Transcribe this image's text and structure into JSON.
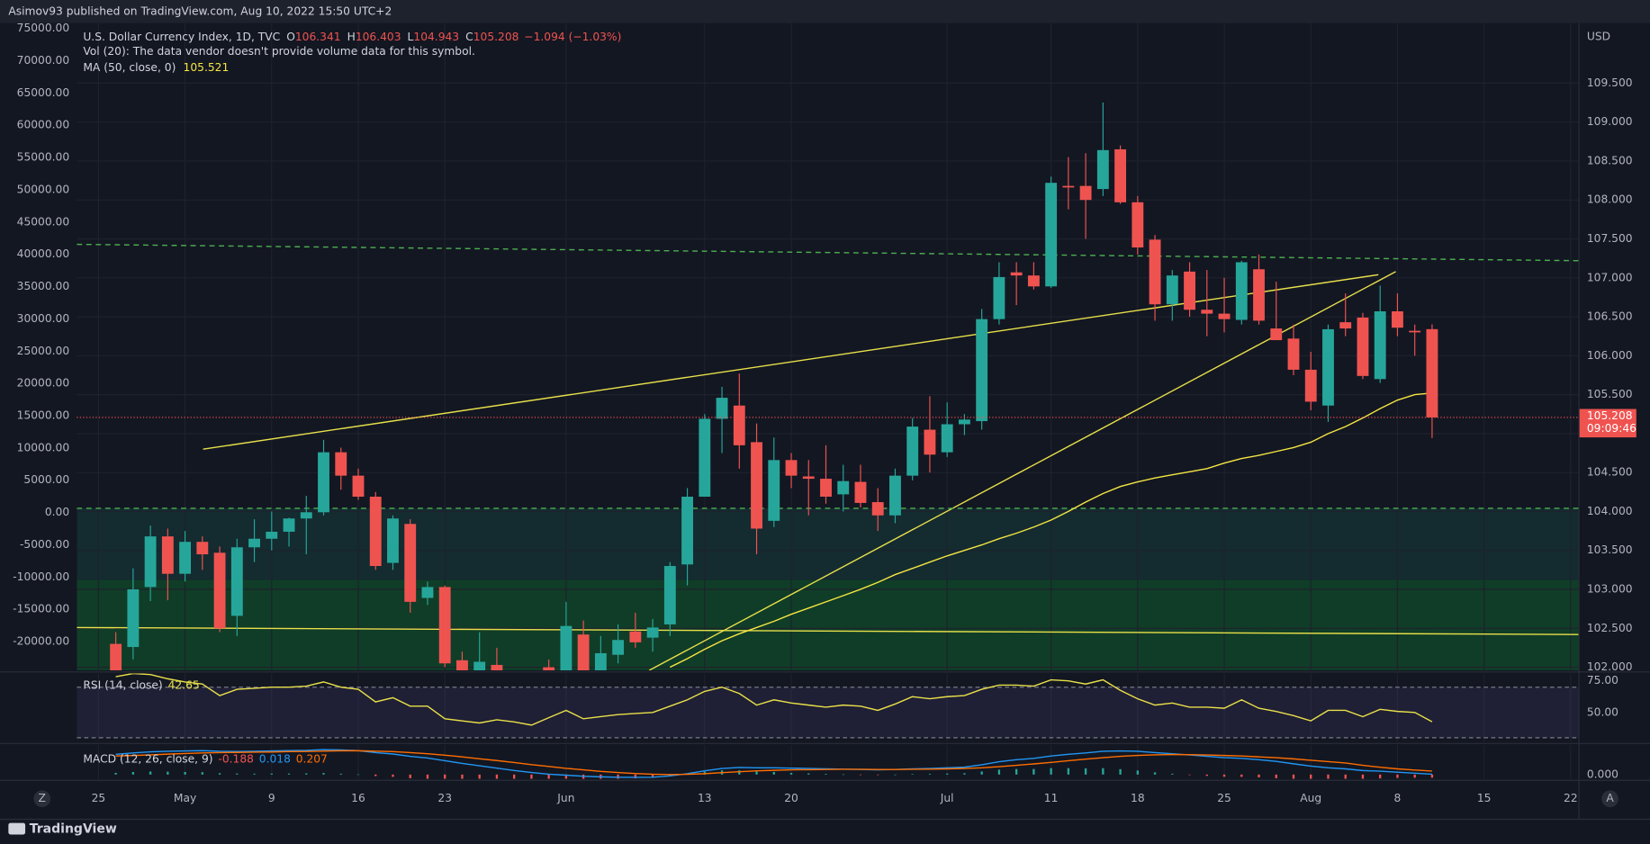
{
  "chart_data": {
    "type": "candlestick",
    "published": "Asimov93 published on TradingView.com, Aug 10, 2022 15:50 UTC+2",
    "symbol": "U.S. Dollar Currency Index, 1D, TVC",
    "ohlc_labels": [
      "O",
      "H",
      "L",
      "C"
    ],
    "change": "−1.094 (−1.03%)",
    "volume_note": "Vol (20): The data vendor doesn't provide volume data for this symbol.",
    "currency": "USD",
    "countdown": "09:09:46",
    "brand": "TradingView",
    "axis_buttons": [
      "Z",
      "A"
    ],
    "up_color": "#26a69a",
    "down_color": "#ef5350",
    "candles": {
      "open": [
        102.3,
        102.26,
        103.03,
        103.68,
        103.2,
        103.61,
        103.47,
        102.66,
        103.54,
        103.65,
        103.74,
        103.91,
        103.99,
        104.76,
        104.46,
        104.19,
        103.34,
        103.84,
        102.89,
        103.03,
        102.09,
        101.95,
        102.03,
        101.85,
        101.6,
        102.0,
        101.8,
        102.42,
        101.9,
        102.16,
        102.46,
        102.38,
        102.55,
        103.32,
        104.19,
        105.19,
        105.36,
        104.89,
        103.88,
        104.66,
        104.45,
        104.42,
        104.22,
        104.38,
        104.12,
        103.95,
        104.46,
        105.05,
        104.76,
        105.12,
        105.16,
        106.47,
        107.07,
        107.03,
        106.89,
        108.18,
        108.18,
        108.14,
        108.65,
        107.97,
        107.49,
        106.66,
        107.08,
        106.59,
        106.54,
        106.46,
        107.11,
        106.35,
        106.22,
        105.82,
        105.36,
        106.43,
        106.49,
        105.7,
        106.57,
        106.32,
        106.341
      ],
      "high": [
        102.45,
        103.27,
        103.82,
        103.78,
        103.75,
        103.68,
        103.55,
        103.65,
        103.9,
        104.0,
        103.92,
        104.2,
        104.92,
        104.82,
        104.55,
        104.25,
        103.95,
        103.9,
        103.1,
        103.05,
        102.2,
        102.45,
        102.25,
        101.95,
        101.9,
        102.1,
        102.84,
        102.6,
        102.4,
        102.55,
        102.7,
        102.62,
        103.35,
        104.3,
        105.25,
        105.6,
        105.77,
        105.13,
        104.95,
        104.75,
        104.66,
        104.85,
        104.6,
        104.6,
        104.3,
        104.55,
        105.2,
        105.48,
        105.4,
        105.25,
        106.6,
        107.2,
        107.2,
        107.2,
        108.3,
        108.55,
        108.6,
        109.25,
        108.7,
        108.05,
        107.55,
        107.1,
        107.2,
        107.1,
        107.0,
        107.22,
        107.3,
        106.95,
        106.4,
        106.05,
        106.4,
        106.8,
        106.55,
        106.9,
        106.8,
        106.4,
        106.403
      ],
      "low": [
        101.8,
        102.1,
        102.85,
        102.86,
        103.1,
        103.25,
        102.45,
        102.4,
        103.35,
        103.5,
        103.55,
        103.45,
        103.95,
        104.28,
        104.15,
        103.25,
        103.25,
        102.7,
        102.8,
        102.0,
        101.9,
        101.85,
        101.85,
        101.6,
        101.5,
        101.7,
        101.7,
        101.8,
        101.8,
        102.05,
        102.25,
        102.2,
        102.4,
        103.05,
        104.19,
        104.75,
        104.55,
        103.45,
        103.8,
        104.3,
        103.95,
        104.1,
        104.0,
        104.05,
        103.75,
        103.85,
        104.4,
        104.5,
        104.7,
        104.98,
        105.05,
        106.4,
        106.65,
        106.85,
        106.87,
        107.88,
        107.5,
        108.05,
        107.95,
        107.3,
        106.45,
        106.45,
        106.5,
        106.25,
        106.3,
        106.4,
        106.4,
        106.2,
        105.75,
        105.3,
        105.15,
        106.25,
        105.7,
        105.65,
        106.25,
        106.0,
        104.943
      ],
      "close": [
        101.9,
        103.0,
        103.68,
        103.2,
        103.61,
        103.45,
        102.5,
        103.54,
        103.65,
        103.74,
        103.91,
        103.99,
        104.76,
        104.46,
        104.19,
        103.3,
        103.91,
        102.84,
        103.03,
        102.05,
        101.95,
        102.07,
        101.9,
        101.65,
        101.8,
        101.8,
        102.53,
        101.9,
        102.18,
        102.35,
        102.32,
        102.51,
        103.3,
        104.19,
        105.19,
        105.46,
        104.85,
        103.78,
        104.66,
        104.46,
        104.42,
        104.19,
        104.39,
        104.11,
        103.95,
        104.46,
        105.09,
        104.73,
        105.12,
        105.18,
        106.47,
        107.01,
        107.03,
        106.89,
        108.22,
        108.16,
        108.0,
        108.64,
        107.97,
        107.39,
        106.66,
        107.03,
        106.59,
        106.54,
        106.47,
        107.2,
        106.45,
        106.2,
        105.82,
        105.41,
        106.34,
        106.35,
        105.74,
        106.57,
        106.36,
        106.3,
        105.208
      ]
    },
    "xlim": [
      -2.25,
      84.45
    ],
    "xticks": [
      {
        "value": -1,
        "label": "25"
      },
      {
        "value": 4,
        "label": "May"
      },
      {
        "value": 9,
        "label": "9"
      },
      {
        "value": 14,
        "label": "16"
      },
      {
        "value": 19,
        "label": "23"
      },
      {
        "value": 26,
        "label": "Jun"
      },
      {
        "value": 34,
        "label": "13"
      },
      {
        "value": 39,
        "label": "20"
      },
      {
        "value": 48,
        "label": "Jul"
      },
      {
        "value": 54,
        "label": "11"
      },
      {
        "value": 59,
        "label": "18"
      },
      {
        "value": 64,
        "label": "25"
      },
      {
        "value": 69,
        "label": "Aug"
      },
      {
        "value": 74,
        "label": "8"
      },
      {
        "value": 79,
        "label": "15"
      },
      {
        "value": 84,
        "label": "22"
      }
    ],
    "ylim": [
      101.96,
      110.27
    ],
    "yticks": [
      {
        "value": 102,
        "label": "102.000"
      },
      {
        "value": 102.5,
        "label": "102.500"
      },
      {
        "value": 103,
        "label": "103.000"
      },
      {
        "value": 103.5,
        "label": "103.500"
      },
      {
        "value": 104,
        "label": "104.000"
      },
      {
        "value": 104.5,
        "label": "104.500"
      },
      {
        "value": 105,
        "label": "105.000"
      },
      {
        "value": 105.5,
        "label": "105.500"
      },
      {
        "value": 106,
        "label": "106.000"
      },
      {
        "value": 106.5,
        "label": "106.500"
      },
      {
        "value": 107,
        "label": "107.000"
      },
      {
        "value": 107.5,
        "label": "107.500"
      },
      {
        "value": 108,
        "label": "108.000"
      },
      {
        "value": 108.5,
        "label": "108.500"
      },
      {
        "value": 109,
        "label": "109.000"
      },
      {
        "value": 109.5,
        "label": "109.500"
      }
    ],
    "left_axis": {
      "ylim": [
        -24450,
        75815
      ],
      "yticks": [
        {
          "value": 75000,
          "label": "75000.00"
        },
        {
          "value": 70000,
          "label": "70000.00"
        },
        {
          "value": 65000,
          "label": "65000.00"
        },
        {
          "value": 60000,
          "label": "60000.00"
        },
        {
          "value": 55000,
          "label": "55000.00"
        },
        {
          "value": 50000,
          "label": "50000.00"
        },
        {
          "value": 45000,
          "label": "45000.00"
        },
        {
          "value": 40000,
          "label": "40000.00"
        },
        {
          "value": 35000,
          "label": "35000.00"
        },
        {
          "value": 30000,
          "label": "30000.00"
        },
        {
          "value": 25000,
          "label": "25000.00"
        },
        {
          "value": 20000,
          "label": "20000.00"
        },
        {
          "value": 15000,
          "label": "15000.00"
        },
        {
          "value": 10000,
          "label": "10000.00"
        },
        {
          "value": 5000,
          "label": "5000.00"
        },
        {
          "value": 0,
          "label": "0.00"
        },
        {
          "value": -5000,
          "label": "-5000.00"
        },
        {
          "value": -10000,
          "label": "-10000.00"
        },
        {
          "value": -15000,
          "label": "-15000.00"
        },
        {
          "value": -20000,
          "label": "-20000.00"
        }
      ]
    },
    "ma": {
      "name": "MA (50, close, 0)",
      "color": "#f5e642",
      "values": [
        null,
        null,
        null,
        null,
        null,
        null,
        null,
        null,
        null,
        null,
        null,
        null,
        null,
        null,
        null,
        null,
        null,
        null,
        null,
        null,
        null,
        null,
        null,
        null,
        null,
        null,
        null,
        null,
        null,
        null,
        null,
        null,
        102.0,
        102.11,
        102.23,
        102.34,
        102.43,
        102.51,
        102.59,
        102.68,
        102.76,
        102.84,
        102.92,
        103.0,
        103.09,
        103.19,
        103.27,
        103.35,
        103.43,
        103.5,
        103.57,
        103.65,
        103.72,
        103.8,
        103.89,
        104.0,
        104.12,
        104.23,
        104.32,
        104.38,
        104.43,
        104.47,
        104.51,
        104.55,
        104.62,
        104.68,
        104.72,
        104.77,
        104.82,
        104.89,
        105.0,
        105.09,
        105.2,
        105.32,
        105.43,
        105.5,
        105.521
      ]
    },
    "zones": [
      {
        "from": 104.04,
        "to": 103.12,
        "color": "#142b30"
      },
      {
        "from": 103.12,
        "to": 101.96,
        "color": "#103d27"
      }
    ],
    "drawings": [
      {
        "style": "solid",
        "color": "#e8e04a",
        "points": [
          [
            5.04,
            104.8
          ],
          [
            72.9,
            107.04
          ]
        ]
      },
      {
        "style": "solid",
        "color": "#e8e04a",
        "points": [
          [
            30.8,
            101.96
          ],
          [
            73.9,
            107.08
          ]
        ]
      },
      {
        "style": "solid",
        "color": "#e8e04a",
        "points": [
          [
            -2.25,
            102.51
          ],
          [
            84.45,
            102.42
          ]
        ]
      },
      {
        "style": "dashed",
        "color": "#4caf50",
        "points": [
          [
            -2.25,
            107.43
          ],
          [
            84.45,
            107.22
          ]
        ]
      },
      {
        "style": "dashed",
        "color": "#4caf50",
        "points": [
          [
            -2.25,
            104.04
          ],
          [
            84.45,
            104.04
          ]
        ]
      }
    ],
    "rsi": {
      "name": "RSI (14, close)",
      "color": "#e8e04a",
      "ylim": [
        26.67,
        80.83
      ],
      "yticks": [
        {
          "value": 75,
          "label": "75.00"
        },
        {
          "value": 50,
          "label": "50.00"
        }
      ],
      "bands": [
        70,
        30
      ],
      "values": [
        78.3,
        80.8,
        80.0,
        76.7,
        74.2,
        72.5,
        63.3,
        68.3,
        69.2,
        70.0,
        70.0,
        70.8,
        74.2,
        70.0,
        68.3,
        58.3,
        61.7,
        55.0,
        55.0,
        45.0,
        43.3,
        41.7,
        44.2,
        42.5,
        40.0,
        45.8,
        51.7,
        45.0,
        46.7,
        48.3,
        49.2,
        50.0,
        55.0,
        60.0,
        66.7,
        70.0,
        65.0,
        55.8,
        60.0,
        57.5,
        55.8,
        54.2,
        55.8,
        55.0,
        51.7,
        56.7,
        62.5,
        60.8,
        62.5,
        63.3,
        68.3,
        71.7,
        71.7,
        70.8,
        75.8,
        75.0,
        72.5,
        75.8,
        67.5,
        60.8,
        55.8,
        57.5,
        54.2,
        54.2,
        53.3,
        60.0,
        53.3,
        50.8,
        47.5,
        43.3,
        51.7,
        51.7,
        46.7,
        52.5,
        50.8,
        50.0,
        42.65
      ]
    },
    "macd": {
      "name": "MACD (12, 26, close, 9)",
      "ylim": [
        -0.25,
        1.75
      ],
      "yticks": [
        {
          "value": 0,
          "label": "0.000"
        }
      ],
      "histogram": {
        "color": "#ef5350",
        "up_color": "#26a69a",
        "values": [
          0.1,
          0.15,
          0.18,
          0.17,
          0.15,
          0.14,
          0.08,
          0.06,
          0.05,
          0.06,
          0.06,
          0.07,
          0.09,
          0.05,
          0.01,
          -0.09,
          -0.14,
          -0.22,
          -0.26,
          -0.33,
          -0.39,
          -0.42,
          -0.45,
          -0.47,
          -0.47,
          -0.46,
          -0.41,
          -0.38,
          -0.33,
          -0.28,
          -0.23,
          -0.18,
          -0.08,
          0.04,
          0.17,
          0.25,
          0.25,
          0.18,
          0.15,
          0.1,
          0.07,
          0.04,
          0.01,
          -0.01,
          -0.02,
          0.0,
          0.03,
          0.04,
          0.06,
          0.08,
          0.18,
          0.29,
          0.33,
          0.33,
          0.38,
          0.38,
          0.37,
          0.38,
          0.32,
          0.24,
          0.13,
          0.05,
          -0.02,
          -0.08,
          -0.13,
          -0.14,
          -0.17,
          -0.22,
          -0.29,
          -0.35,
          -0.37,
          -0.35,
          -0.31,
          -0.23,
          -0.2,
          -0.19,
          -0.188
        ]
      },
      "macd": {
        "color": "#2196f3",
        "values": [
          1.2,
          1.28,
          1.35,
          1.38,
          1.4,
          1.42,
          1.38,
          1.37,
          1.38,
          1.4,
          1.42,
          1.44,
          1.48,
          1.46,
          1.42,
          1.3,
          1.22,
          1.08,
          0.98,
          0.82,
          0.66,
          0.52,
          0.38,
          0.24,
          0.12,
          0.02,
          -0.04,
          -0.1,
          -0.14,
          -0.16,
          -0.17,
          -0.16,
          -0.08,
          0.05,
          0.22,
          0.36,
          0.42,
          0.4,
          0.4,
          0.38,
          0.36,
          0.34,
          0.32,
          0.3,
          0.28,
          0.3,
          0.34,
          0.36,
          0.4,
          0.44,
          0.58,
          0.76,
          0.88,
          0.96,
          1.1,
          1.2,
          1.28,
          1.38,
          1.4,
          1.38,
          1.3,
          1.24,
          1.16,
          1.08,
          1.0,
          0.96,
          0.88,
          0.78,
          0.64,
          0.5,
          0.4,
          0.34,
          0.24,
          0.2,
          0.14,
          0.08,
          0.018
        ]
      },
      "signal": {
        "color": "#ff6d00",
        "values": [
          1.1,
          1.13,
          1.17,
          1.21,
          1.25,
          1.28,
          1.3,
          1.31,
          1.33,
          1.34,
          1.36,
          1.37,
          1.39,
          1.41,
          1.41,
          1.39,
          1.36,
          1.3,
          1.24,
          1.15,
          1.05,
          0.94,
          0.83,
          0.71,
          0.59,
          0.48,
          0.37,
          0.28,
          0.19,
          0.12,
          0.06,
          0.02,
          0.0,
          0.01,
          0.05,
          0.11,
          0.17,
          0.22,
          0.25,
          0.28,
          0.29,
          0.3,
          0.31,
          0.31,
          0.3,
          0.3,
          0.31,
          0.32,
          0.34,
          0.36,
          0.4,
          0.47,
          0.55,
          0.63,
          0.72,
          0.82,
          0.91,
          1.0,
          1.08,
          1.14,
          1.17,
          1.19,
          1.18,
          1.16,
          1.13,
          1.1,
          1.05,
          1.0,
          0.93,
          0.85,
          0.77,
          0.69,
          0.55,
          0.43,
          0.34,
          0.27,
          0.207
        ]
      }
    }
  }
}
